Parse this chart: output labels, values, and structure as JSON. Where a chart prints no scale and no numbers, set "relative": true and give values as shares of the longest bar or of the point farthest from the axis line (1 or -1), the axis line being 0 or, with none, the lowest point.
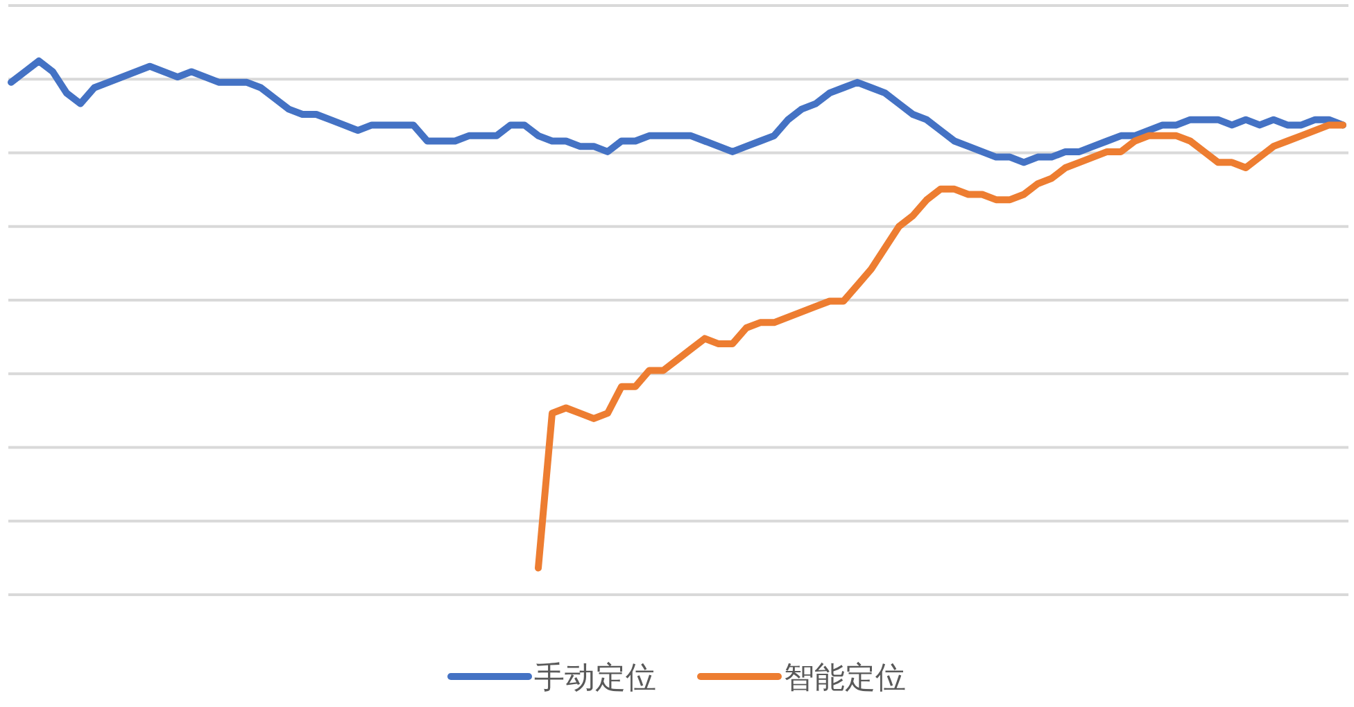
{
  "chart_data": {
    "type": "line",
    "relative": true,
    "grid": true,
    "legend": "bottom",
    "line_style": "solid",
    "categories": [
      null,
      null,
      null,
      null,
      null,
      null,
      null,
      null,
      null,
      null,
      null,
      null,
      null,
      null,
      null,
      null,
      null,
      null,
      null,
      null,
      null,
      null,
      null,
      null,
      null,
      null,
      null,
      null,
      null,
      null,
      null,
      null,
      null,
      null,
      null,
      null,
      null,
      null,
      null,
      null,
      null,
      null,
      null,
      null,
      null,
      null,
      null,
      null,
      null,
      null,
      null,
      null,
      null,
      null,
      null,
      null,
      null,
      null,
      null,
      null,
      null,
      null,
      null,
      null,
      null,
      null,
      null,
      null,
      null,
      null,
      null,
      null,
      null,
      null,
      null,
      null,
      null,
      null,
      null,
      null,
      null,
      null,
      null,
      null,
      null,
      null,
      null,
      null,
      null,
      null,
      null,
      null,
      null,
      null,
      null,
      null,
      null
    ],
    "series": [
      {
        "name": "手动定位",
        "color": "#4472c4",
        "values": [
          0.96,
          0.98,
          1.0,
          0.98,
          0.94,
          0.92,
          0.95,
          0.96,
          0.97,
          0.98,
          0.99,
          0.98,
          0.97,
          0.98,
          0.97,
          0.96,
          0.96,
          0.96,
          0.95,
          0.93,
          0.91,
          0.9,
          0.9,
          0.89,
          0.88,
          0.87,
          0.88,
          0.88,
          0.88,
          0.88,
          0.85,
          0.85,
          0.85,
          0.86,
          0.86,
          0.86,
          0.88,
          0.88,
          0.86,
          0.85,
          0.85,
          0.84,
          0.84,
          0.83,
          0.85,
          0.85,
          0.86,
          0.86,
          0.86,
          0.86,
          0.85,
          0.84,
          0.83,
          0.84,
          0.85,
          0.86,
          0.89,
          0.91,
          0.92,
          0.94,
          0.95,
          0.96,
          0.95,
          0.94,
          0.92,
          0.9,
          0.89,
          0.87,
          0.85,
          0.84,
          0.83,
          0.82,
          0.82,
          0.81,
          0.82,
          0.82,
          0.83,
          0.83,
          0.84,
          0.85,
          0.86,
          0.86,
          0.87,
          0.88,
          0.88,
          0.89,
          0.89,
          0.89,
          0.88,
          0.89,
          0.88,
          0.89,
          0.88,
          0.88,
          0.89,
          0.89,
          0.88
        ]
      },
      {
        "name": "智能定位",
        "color": "#ed7d31",
        "values": [
          null,
          null,
          null,
          null,
          null,
          null,
          null,
          null,
          null,
          null,
          null,
          null,
          null,
          null,
          null,
          null,
          null,
          null,
          null,
          null,
          null,
          null,
          null,
          null,
          null,
          null,
          null,
          null,
          null,
          null,
          null,
          null,
          null,
          null,
          null,
          null,
          null,
          null,
          0.05,
          0.34,
          0.35,
          0.34,
          0.33,
          0.34,
          0.39,
          0.39,
          0.42,
          0.42,
          0.44,
          0.46,
          0.48,
          0.47,
          0.47,
          0.5,
          0.51,
          0.51,
          0.52,
          0.53,
          0.54,
          0.55,
          0.55,
          0.58,
          0.61,
          0.65,
          0.69,
          0.71,
          0.74,
          0.76,
          0.76,
          0.75,
          0.75,
          0.74,
          0.74,
          0.75,
          0.77,
          0.78,
          0.8,
          0.81,
          0.82,
          0.83,
          0.83,
          0.85,
          0.86,
          0.86,
          0.86,
          0.85,
          0.83,
          0.81,
          0.81,
          0.8,
          0.82,
          0.84,
          0.85,
          0.86,
          0.87,
          0.88,
          0.88
        ]
      }
    ]
  }
}
